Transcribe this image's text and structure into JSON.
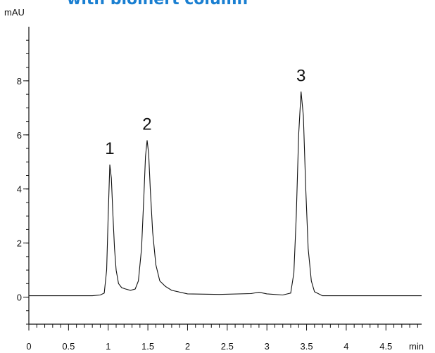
{
  "colors": {
    "title": "#1a7fd1",
    "trace": "#111111",
    "axis": "#111111"
  },
  "chart_data": {
    "type": "line",
    "title": "with bioinert column",
    "xlabel": "min",
    "ylabel": "mAU",
    "xlim": [
      0,
      4.95
    ],
    "ylim": [
      -1,
      10
    ],
    "grid": false,
    "legend": "none",
    "x_ticks": [
      0,
      0.5,
      1,
      1.5,
      2,
      2.5,
      3,
      3.5,
      4,
      4.5
    ],
    "y_ticks": [
      0,
      2,
      4,
      6,
      8
    ],
    "peaks": [
      {
        "label": "1",
        "x": 1.02,
        "y": 4.9
      },
      {
        "label": "2",
        "x": 1.49,
        "y": 5.8
      },
      {
        "label": "3",
        "x": 3.43,
        "y": 7.6
      }
    ],
    "series": [
      {
        "x": [
          0.0,
          0.4,
          0.8,
          0.9,
          0.95,
          0.98,
          1.0,
          1.02,
          1.04,
          1.06,
          1.08,
          1.1,
          1.13,
          1.17,
          1.22,
          1.28,
          1.34,
          1.38,
          1.42,
          1.45,
          1.47,
          1.49,
          1.51,
          1.53,
          1.56,
          1.6,
          1.65,
          1.72,
          1.8,
          2.0,
          2.4,
          2.8,
          2.9,
          3.0,
          3.2,
          3.3,
          3.34,
          3.37,
          3.4,
          3.43,
          3.46,
          3.49,
          3.52,
          3.56,
          3.6,
          3.7,
          4.0,
          4.5,
          4.95
        ],
        "values": [
          0.05,
          0.05,
          0.05,
          0.08,
          0.15,
          1.0,
          3.0,
          4.9,
          4.4,
          3.0,
          1.8,
          1.0,
          0.5,
          0.35,
          0.3,
          0.25,
          0.3,
          0.6,
          1.8,
          3.8,
          5.2,
          5.8,
          5.3,
          4.0,
          2.4,
          1.2,
          0.6,
          0.4,
          0.25,
          0.12,
          0.1,
          0.13,
          0.18,
          0.12,
          0.08,
          0.15,
          0.9,
          3.0,
          6.0,
          7.6,
          6.7,
          4.0,
          1.8,
          0.6,
          0.2,
          0.05,
          0.05,
          0.05,
          0.05
        ]
      }
    ]
  }
}
